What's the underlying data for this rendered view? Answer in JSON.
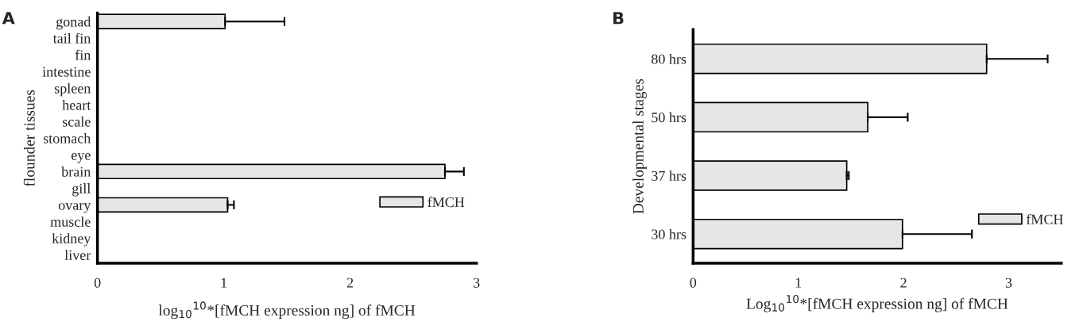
{
  "chart_data": [
    {
      "type": "bar",
      "orientation": "horizontal",
      "title": "A",
      "xlabel": "log$_{10}$$^{10}$*[fMCH expression ng] of fMCH",
      "ylabel": "flounder tissues",
      "categories": [
        "gonad",
        "tail fin",
        "fin",
        "intestine",
        "spleen",
        "heart",
        "scale",
        "stomach",
        "eye",
        "brain",
        "gill",
        "ovary",
        "muscle",
        "kidney",
        "liver"
      ],
      "series": [
        {
          "name": "fMCH",
          "color": "#e6e6e6",
          "values": [
            1.01,
            0,
            0,
            0,
            0,
            0,
            0,
            0,
            0,
            2.75,
            0,
            1.03,
            0,
            0,
            0
          ],
          "errors": [
            0.47,
            null,
            null,
            null,
            null,
            null,
            null,
            null,
            null,
            0.15,
            null,
            0.05,
            null,
            null,
            null
          ]
        }
      ],
      "xlim": [
        0,
        3
      ],
      "xticks": [
        0,
        1,
        2,
        3
      ],
      "grid": false,
      "legend": "bottom right"
    },
    {
      "type": "bar",
      "orientation": "horizontal",
      "title": "B",
      "xlabel": "Log$_{10}$$^{10}$*[fMCH expression ng] of fMCH",
      "ylabel": "Developmental stages",
      "categories": [
        "80 hrs",
        "50 hrs",
        "37 hrs",
        "30 hrs"
      ],
      "series": [
        {
          "name": "fMCH",
          "color": "#e6e6e6",
          "values": [
            2.79,
            1.66,
            1.46,
            1.99
          ],
          "errors": [
            0.58,
            0.38,
            0.02,
            0.66
          ]
        }
      ],
      "xlim": [
        0,
        3.5
      ],
      "xticks": [
        0,
        1,
        2,
        3
      ],
      "grid": false,
      "legend": "bottom right"
    }
  ]
}
